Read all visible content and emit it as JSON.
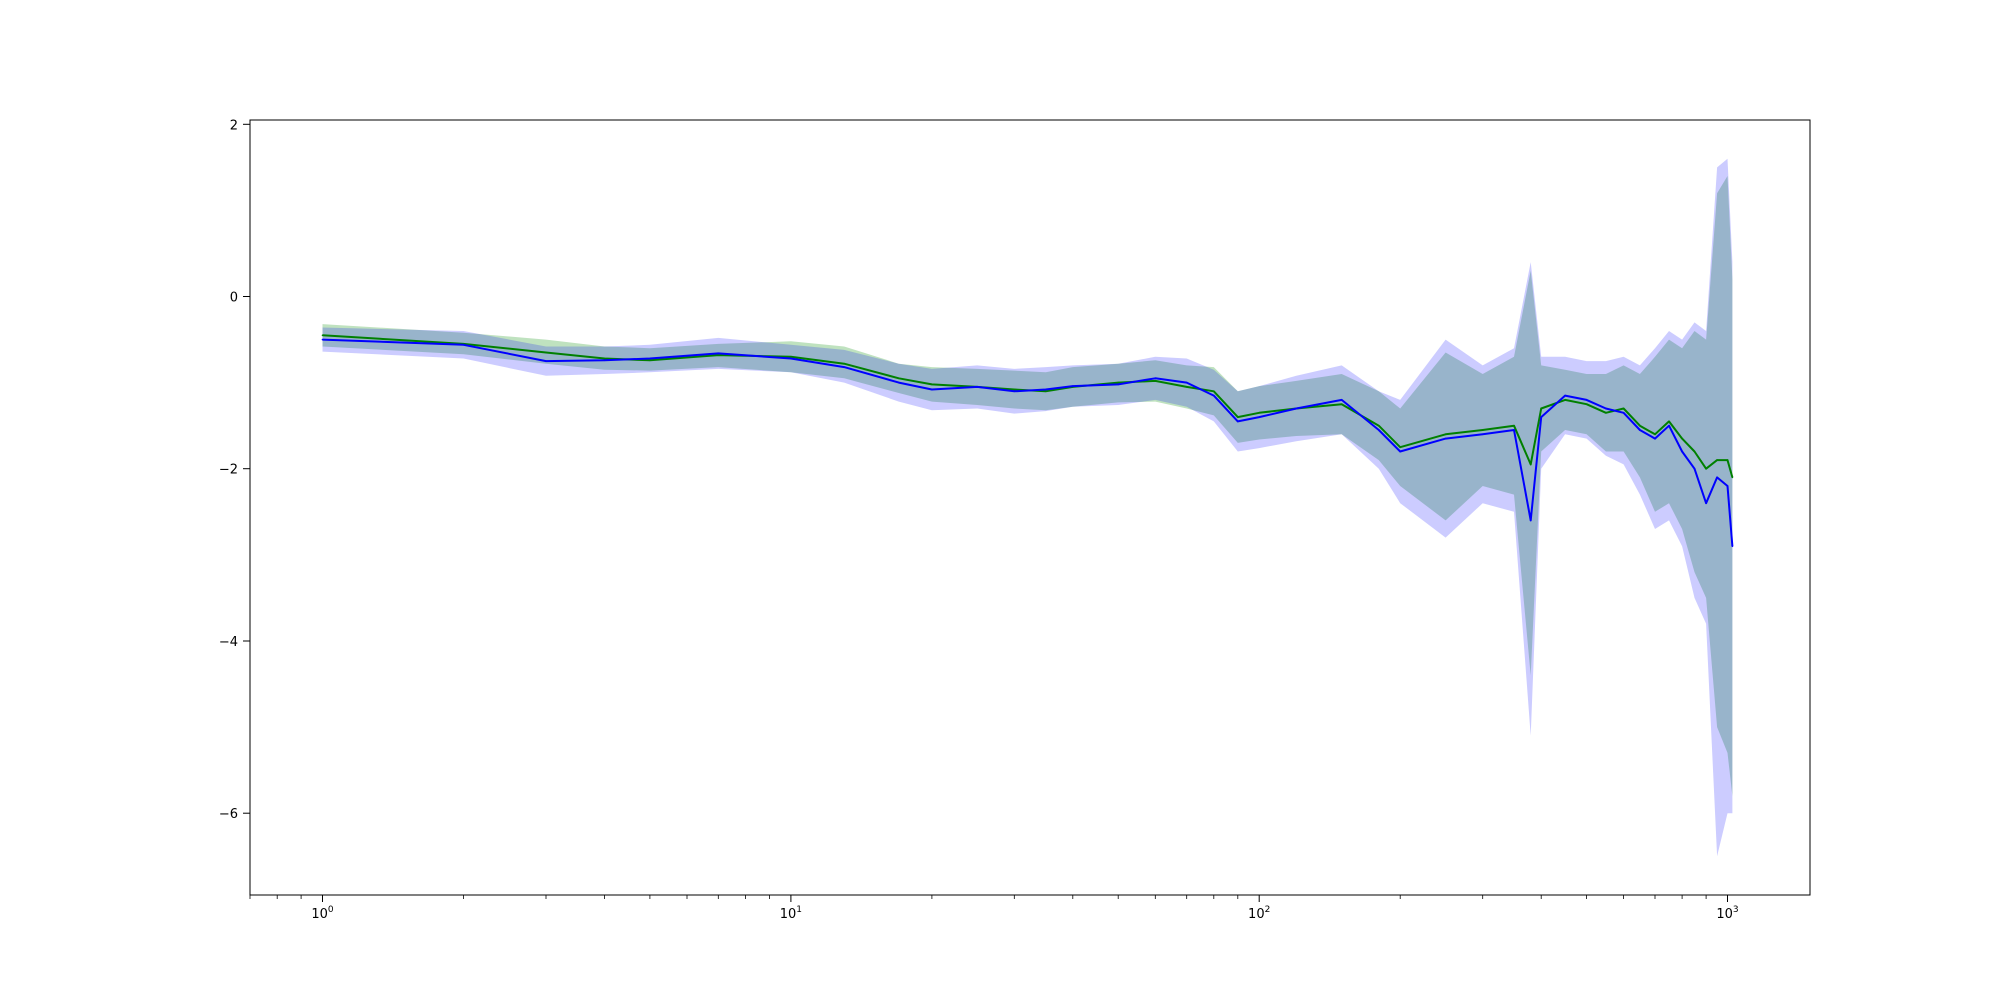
{
  "chart_data": {
    "type": "line",
    "title": "",
    "xlabel": "",
    "ylabel": "",
    "xscale": "log",
    "xlim": [
      0.7,
      1500
    ],
    "ylim": [
      -6.95,
      2.05
    ],
    "grid": false,
    "legend": "none",
    "x_ticks": [
      {
        "value": 1,
        "base": "10",
        "exp": "0"
      },
      {
        "value": 10,
        "base": "10",
        "exp": "1"
      },
      {
        "value": 100,
        "base": "10",
        "exp": "2"
      },
      {
        "value": 1000,
        "base": "10",
        "exp": "3"
      }
    ],
    "y_ticks": [
      {
        "value": 2,
        "label": "2"
      },
      {
        "value": 0,
        "label": "0"
      },
      {
        "value": -2,
        "label": "−2"
      },
      {
        "value": -4,
        "label": "−4"
      },
      {
        "value": -6,
        "label": "−6"
      }
    ],
    "series": [
      {
        "color": "#008000",
        "band_color": "#2ca02c",
        "band_opacity": 0.3,
        "x": [
          1,
          2,
          3,
          4,
          5,
          7,
          10,
          13,
          17,
          20,
          25,
          30,
          35,
          40,
          50,
          60,
          70,
          80,
          90,
          100,
          120,
          150,
          180,
          200,
          250,
          300,
          350,
          380,
          400,
          450,
          500,
          550,
          600,
          650,
          700,
          750,
          800,
          850,
          900,
          950,
          1000,
          1024
        ],
        "y": [
          -0.45,
          -0.55,
          -0.65,
          -0.72,
          -0.74,
          -0.68,
          -0.7,
          -0.78,
          -0.95,
          -1.02,
          -1.05,
          -1.08,
          -1.1,
          -1.05,
          -1.0,
          -0.98,
          -1.05,
          -1.1,
          -1.4,
          -1.35,
          -1.3,
          -1.25,
          -1.5,
          -1.75,
          -1.6,
          -1.55,
          -1.5,
          -1.95,
          -1.3,
          -1.2,
          -1.25,
          -1.35,
          -1.3,
          -1.5,
          -1.6,
          -1.45,
          -1.65,
          -1.8,
          -2.0,
          -1.9,
          -1.9,
          -2.1
        ],
        "lower": [
          -0.58,
          -0.67,
          -0.78,
          -0.85,
          -0.86,
          -0.82,
          -0.88,
          -0.95,
          -1.12,
          -1.22,
          -1.26,
          -1.3,
          -1.32,
          -1.28,
          -1.23,
          -1.22,
          -1.3,
          -1.38,
          -1.7,
          -1.66,
          -1.62,
          -1.6,
          -1.9,
          -2.2,
          -2.6,
          -2.2,
          -2.3,
          -4.4,
          -1.8,
          -1.55,
          -1.6,
          -1.8,
          -1.8,
          -2.1,
          -2.5,
          -2.4,
          -2.7,
          -3.2,
          -3.5,
          -5.0,
          -5.3,
          -5.8
        ],
        "upper": [
          -0.32,
          -0.42,
          -0.5,
          -0.58,
          -0.6,
          -0.55,
          -0.52,
          -0.58,
          -0.78,
          -0.82,
          -0.84,
          -0.86,
          -0.88,
          -0.82,
          -0.78,
          -0.74,
          -0.8,
          -0.82,
          -1.1,
          -1.04,
          -0.98,
          -0.9,
          -1.1,
          -1.3,
          -0.65,
          -0.9,
          -0.7,
          0.3,
          -0.8,
          -0.85,
          -0.9,
          -0.9,
          -0.8,
          -0.9,
          -0.7,
          -0.5,
          -0.6,
          -0.4,
          -0.5,
          1.2,
          1.4,
          0.2
        ]
      },
      {
        "color": "#0000ff",
        "band_color": "#0000ff",
        "band_opacity": 0.2,
        "x": [
          1,
          2,
          3,
          4,
          5,
          7,
          10,
          13,
          17,
          20,
          25,
          30,
          35,
          40,
          50,
          60,
          70,
          80,
          90,
          100,
          120,
          150,
          180,
          200,
          250,
          300,
          350,
          380,
          400,
          450,
          500,
          550,
          600,
          650,
          700,
          750,
          800,
          850,
          900,
          950,
          1000,
          1024
        ],
        "y": [
          -0.5,
          -0.56,
          -0.75,
          -0.74,
          -0.72,
          -0.66,
          -0.72,
          -0.82,
          -1.0,
          -1.08,
          -1.05,
          -1.1,
          -1.08,
          -1.04,
          -1.02,
          -0.95,
          -1.0,
          -1.15,
          -1.45,
          -1.4,
          -1.3,
          -1.2,
          -1.55,
          -1.8,
          -1.65,
          -1.6,
          -1.55,
          -2.6,
          -1.4,
          -1.15,
          -1.2,
          -1.3,
          -1.35,
          -1.55,
          -1.65,
          -1.5,
          -1.8,
          -2.0,
          -2.4,
          -2.1,
          -2.2,
          -2.9
        ],
        "lower": [
          -0.64,
          -0.72,
          -0.92,
          -0.9,
          -0.88,
          -0.84,
          -0.88,
          -1.0,
          -1.22,
          -1.32,
          -1.3,
          -1.36,
          -1.33,
          -1.28,
          -1.26,
          -1.2,
          -1.28,
          -1.45,
          -1.8,
          -1.76,
          -1.68,
          -1.6,
          -2.0,
          -2.4,
          -2.8,
          -2.4,
          -2.5,
          -5.1,
          -2.0,
          -1.6,
          -1.65,
          -1.85,
          -1.95,
          -2.3,
          -2.7,
          -2.6,
          -2.9,
          -3.5,
          -3.8,
          -6.5,
          -6.0,
          -6.0
        ],
        "upper": [
          -0.36,
          -0.4,
          -0.58,
          -0.58,
          -0.56,
          -0.48,
          -0.56,
          -0.62,
          -0.78,
          -0.84,
          -0.8,
          -0.84,
          -0.82,
          -0.8,
          -0.78,
          -0.7,
          -0.72,
          -0.85,
          -1.1,
          -1.04,
          -0.92,
          -0.8,
          -1.1,
          -1.2,
          -0.5,
          -0.8,
          -0.6,
          0.4,
          -0.7,
          -0.7,
          -0.75,
          -0.75,
          -0.7,
          -0.8,
          -0.6,
          -0.4,
          -0.5,
          -0.3,
          -0.4,
          1.5,
          1.6,
          0.4
        ]
      }
    ]
  }
}
